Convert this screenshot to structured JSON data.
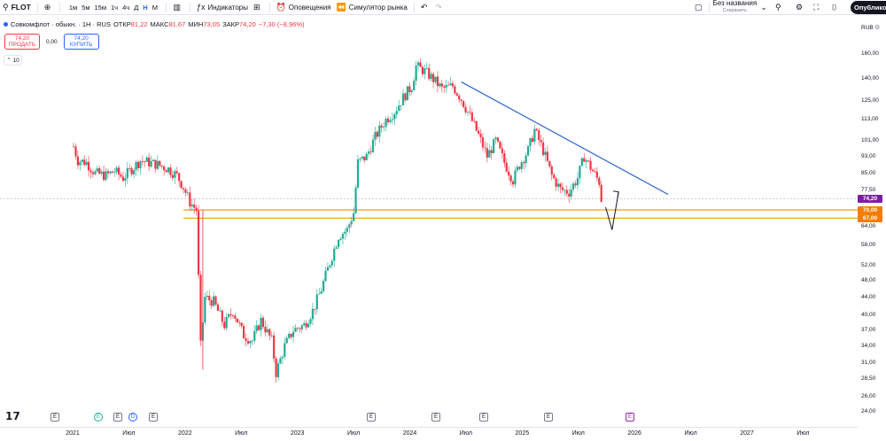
{
  "toolbar": {
    "ticker": "FLOT",
    "timeframes": [
      "1м",
      "5м",
      "15м",
      "1ч",
      "4ч",
      "Д",
      "Н",
      "М"
    ],
    "active_timeframe": "Н",
    "indicators_label": "Индикаторы",
    "alerts_label": "Оповещения",
    "replay_label": "Симулятор рынка",
    "layout_name": "Без названия",
    "layout_status": "Сохранить",
    "publish_label": "Опублико"
  },
  "legend": {
    "title": "Совкомфлот · обыкн. · 1Н · RUS",
    "open_label": "ОТКР",
    "open": "81,22",
    "high_label": "МАКС",
    "high": "81,67",
    "low_label": "МИН",
    "low": "73,05",
    "close_label": "ЗАКР",
    "close": "74,20",
    "change": "−7,30 (−8,96%)"
  },
  "trade": {
    "sell_price": "74,20",
    "sell_label": "ПРОДАТЬ",
    "spread": "0,00",
    "buy_price": "74,20",
    "buy_label": "КУПИТЬ"
  },
  "indicator_count": "10",
  "price_axis": {
    "currency": "RUB",
    "ticks": [
      "160,00",
      "140,00",
      "125,00",
      "113,00",
      "101,00",
      "93,00",
      "85,00",
      "77,50",
      "64,00",
      "58,00",
      "52,00",
      "48,00",
      "44,00",
      "40,00",
      "37,00",
      "34,00",
      "31,00",
      "28,50",
      "26,00",
      "24,00"
    ],
    "tags": [
      {
        "text": "74,20",
        "color": "#7b1fa2"
      },
      {
        "text": "70,00",
        "color": "#f57c00"
      },
      {
        "text": "67,00",
        "color": "#f57c00"
      }
    ]
  },
  "time_axis": [
    "2021",
    "Июл",
    "2022",
    "Июл",
    "2023",
    "Июл",
    "2024",
    "Июл",
    "2025",
    "Июл",
    "2026",
    "Июл",
    "2027",
    "Июл"
  ],
  "events": [
    "E",
    "E",
    "E",
    "D",
    "E",
    "E",
    "E",
    "E",
    "E",
    "E"
  ],
  "colors": {
    "up": "#22ab94",
    "down": "#f23645",
    "trend": "#3d6fd1",
    "level": "#f5a623"
  },
  "chart_data": {
    "type": "candlestick",
    "symbol": "FLOT",
    "timeframe": "1W",
    "x_start": "2021-01",
    "x_end": "2027-09",
    "ylim": [
      24,
      160
    ],
    "y_scale": "log",
    "path": [
      [
        "2021-01-04",
        98
      ],
      [
        "2021-01-18",
        91
      ],
      [
        "2021-02-15",
        90
      ],
      [
        "2021-03-15",
        85
      ],
      [
        "2021-04-19",
        84
      ],
      [
        "2021-05-17",
        86
      ],
      [
        "2021-06-14",
        83
      ],
      [
        "2021-07-12",
        87
      ],
      [
        "2021-08-09",
        91
      ],
      [
        "2021-09-06",
        90
      ],
      [
        "2021-10-04",
        89
      ],
      [
        "2021-11-08",
        87
      ],
      [
        "2021-12-06",
        84
      ],
      [
        "2021-12-27",
        79
      ],
      [
        "2022-01-17",
        73
      ],
      [
        "2022-02-07",
        70
      ],
      [
        "2022-02-21",
        34
      ],
      [
        "2022-03-07",
        44
      ],
      [
        "2022-04-04",
        43
      ],
      [
        "2022-05-09",
        38
      ],
      [
        "2022-06-06",
        41
      ],
      [
        "2022-07-11",
        36
      ],
      [
        "2022-08-08",
        35
      ],
      [
        "2022-09-05",
        39
      ],
      [
        "2022-10-10",
        35
      ],
      [
        "2022-10-24",
        29.5
      ],
      [
        "2022-11-21",
        34
      ],
      [
        "2022-12-19",
        37
      ],
      [
        "2023-01-23",
        38
      ],
      [
        "2023-02-20",
        41
      ],
      [
        "2023-03-20",
        46
      ],
      [
        "2023-04-17",
        53
      ],
      [
        "2023-05-15",
        61
      ],
      [
        "2023-06-12",
        63
      ],
      [
        "2023-07-03",
        69
      ],
      [
        "2023-07-17",
        90
      ],
      [
        "2023-08-14",
        93
      ],
      [
        "2023-09-11",
        103
      ],
      [
        "2023-10-16",
        113
      ],
      [
        "2023-11-13",
        118
      ],
      [
        "2023-12-11",
        127
      ],
      [
        "2024-01-08",
        135
      ],
      [
        "2024-01-22",
        150
      ],
      [
        "2024-02-19",
        146
      ],
      [
        "2024-03-18",
        140
      ],
      [
        "2024-04-15",
        133
      ],
      [
        "2024-05-20",
        135
      ],
      [
        "2024-06-17",
        126
      ],
      [
        "2024-07-15",
        115
      ],
      [
        "2024-08-12",
        104
      ],
      [
        "2024-09-09",
        93
      ],
      [
        "2024-10-07",
        101
      ],
      [
        "2024-11-04",
        90
      ],
      [
        "2024-12-02",
        82
      ],
      [
        "2024-12-23",
        89
      ],
      [
        "2025-01-20",
        96
      ],
      [
        "2025-02-10",
        107
      ],
      [
        "2025-03-10",
        96
      ],
      [
        "2025-04-07",
        84
      ],
      [
        "2025-05-05",
        78
      ],
      [
        "2025-06-02",
        77
      ],
      [
        "2025-06-30",
        83
      ],
      [
        "2025-07-21",
        93
      ],
      [
        "2025-08-18",
        86
      ],
      [
        "2025-09-08",
        81.22
      ],
      [
        "2025-09-15",
        74.2
      ]
    ],
    "trendline": [
      [
        "2024-06-17",
        138
      ],
      [
        "2026-04-20",
        76
      ]
    ],
    "levels": [
      70,
      67
    ],
    "last_price": 74.2,
    "arrow": [
      [
        "2025-09-29",
        71
      ],
      [
        "2025-10-20",
        63
      ],
      [
        "2025-11-10",
        77
      ]
    ]
  }
}
